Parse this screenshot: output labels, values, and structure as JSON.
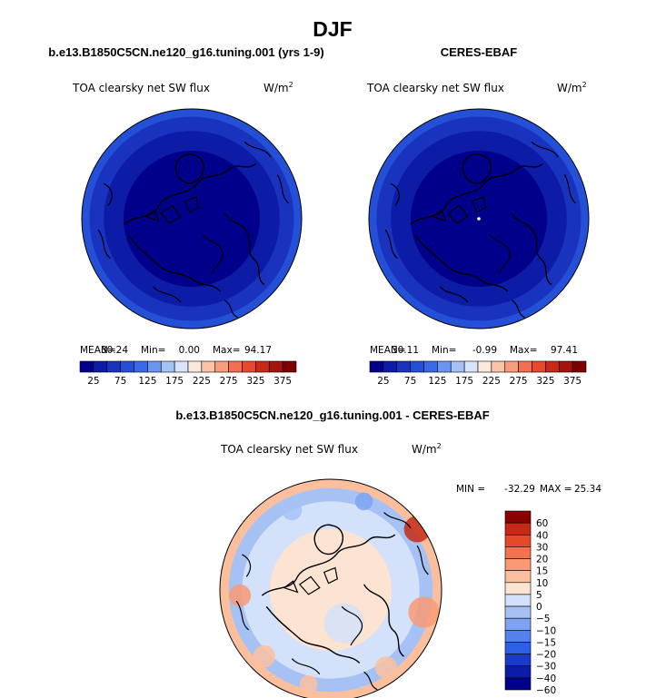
{
  "figure": {
    "title": "DJF"
  },
  "colors": {
    "abs": [
      "#00008b",
      "#0c1ca6",
      "#1a33bf",
      "#2450d8",
      "#3a6ae8",
      "#6b96f0",
      "#a4c2f4",
      "#d7e5fb",
      "#fde8dc",
      "#fcc3a8",
      "#f99c7c",
      "#f2704f",
      "#e8492c",
      "#c92a17",
      "#a3140c",
      "#7d0000"
    ],
    "diff": [
      "#00008b",
      "#0c1ca6",
      "#1a3bc8",
      "#2f5fe3",
      "#5382ec",
      "#7ea3f1",
      "#a6c2f5",
      "#d3e2fa",
      "#fde3d1",
      "#fbbf9d",
      "#f99a74",
      "#f3734f",
      "#e44a2a",
      "#c62a16",
      "#8b0000"
    ],
    "coastline": "#000000"
  },
  "chart_data": [
    {
      "type": "polar-contour-map",
      "title": "b.e13.B1850C5CN.ne120_g16.tuning.001 (yrs 1-9)",
      "variable": "TOA clearsky net SW flux",
      "units": "W/m",
      "units_exponent": "2",
      "projection": "north polar stereographic",
      "stats": {
        "mean_label": "MEAN=",
        "mean": "30.24",
        "min_label": "Min=",
        "min": "0.00",
        "max_label": "Max=",
        "max": "94.17"
      },
      "contour_levels": [
        0,
        25,
        50,
        75,
        100,
        125,
        150,
        175,
        200,
        225,
        250,
        275,
        300,
        325,
        350,
        375
      ],
      "colorbar_tick_labels": [
        "25",
        "75",
        "125",
        "175",
        "225",
        "275",
        "325",
        "375"
      ],
      "zones": [
        {
          "from_center": 0.0,
          "to_center": 0.62,
          "level_index": 0
        },
        {
          "from_center": 0.62,
          "to_center": 0.8,
          "level_index": 1
        },
        {
          "from_center": 0.8,
          "to_center": 0.93,
          "level_index": 2
        },
        {
          "from_center": 0.93,
          "to_center": 1.0,
          "level_index": 3
        }
      ]
    },
    {
      "type": "polar-contour-map",
      "title": "CERES-EBAF",
      "variable": "TOA clearsky net SW flux",
      "units": "W/m",
      "units_exponent": "2",
      "projection": "north polar stereographic",
      "stats": {
        "mean_label": "MEAN=",
        "mean": "30.11",
        "min_label": "Min=",
        "min": "-0.99",
        "max_label": "Max=",
        "max": "97.41"
      },
      "contour_levels": [
        0,
        25,
        50,
        75,
        100,
        125,
        150,
        175,
        200,
        225,
        250,
        275,
        300,
        325,
        350,
        375
      ],
      "colorbar_tick_labels": [
        "25",
        "75",
        "125",
        "175",
        "225",
        "275",
        "325",
        "375"
      ],
      "zones": [
        {
          "from_center": 0.0,
          "to_center": 0.62,
          "level_index": 0
        },
        {
          "from_center": 0.62,
          "to_center": 0.8,
          "level_index": 1
        },
        {
          "from_center": 0.8,
          "to_center": 0.93,
          "level_index": 2
        },
        {
          "from_center": 0.93,
          "to_center": 1.0,
          "level_index": 3
        }
      ]
    },
    {
      "type": "polar-contour-map-difference",
      "title": "b.e13.B1850C5CN.ne120_g16.tuning.001 - CERES-EBAF",
      "variable": "TOA clearsky net SW flux",
      "units": "W/m",
      "units_exponent": "2",
      "projection": "north polar stereographic",
      "stats": {
        "min_label": "MIN =",
        "min": "-32.29",
        "max_label": "MAX =",
        "max": "25.34"
      },
      "contour_levels": [
        -60,
        -40,
        -30,
        -20,
        -15,
        -10,
        -5,
        0,
        5,
        10,
        15,
        20,
        30,
        40,
        60
      ],
      "colorbar_tick_labels": [
        "60",
        "40",
        "30",
        "20",
        "15",
        "10",
        "5",
        "0",
        "−5",
        "−10",
        "−15",
        "−20",
        "−30",
        "−40",
        "−60"
      ],
      "zones": [
        {
          "from_center": 0.0,
          "to_center": 0.55,
          "level_index": 8
        },
        {
          "from_center": 0.55,
          "to_center": 0.8,
          "level_index": 7
        },
        {
          "from_center": 0.8,
          "to_center": 0.92,
          "level_index": 6
        },
        {
          "from_center": 0.92,
          "to_center": 1.0,
          "level_index": 9
        }
      ]
    }
  ]
}
